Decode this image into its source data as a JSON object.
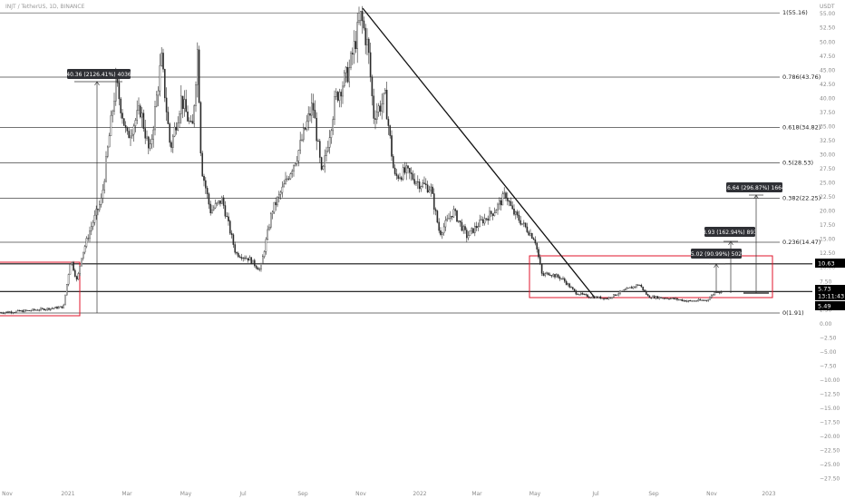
{
  "header": {
    "symbol": "INJT / TetherUS, 1D, BINANCE",
    "currency": "USDT"
  },
  "colors": {
    "candle": "#2b2b2b",
    "fib_line": "#444444",
    "zone_border": "#e0162b",
    "box_bg": "#2f3035",
    "price_tag_bg": "#000000"
  },
  "chart_data": {
    "type": "candlestick",
    "title": "INJT / TetherUS, 1D, BINANCE",
    "yunit": "USDT",
    "x_ticks": [
      "Nov",
      "2021",
      "Mar",
      "May",
      "Jul",
      "Sep",
      "Nov",
      "2022",
      "Mar",
      "May",
      "Jul",
      "Sep",
      "Nov",
      "2023"
    ],
    "y_ticks": [
      "55.00",
      "52.50",
      "50.00",
      "47.50",
      "45.00",
      "42.50",
      "40.00",
      "37.50",
      "35.00",
      "32.50",
      "30.00",
      "27.50",
      "25.00",
      "22.50",
      "20.00",
      "17.50",
      "15.00",
      "12.50",
      "10.00",
      "7.50",
      "5.00",
      "2.50",
      "0.00",
      "−2.50",
      "−5.00",
      "−7.50",
      "−10.00",
      "−12.50",
      "−15.00",
      "−17.50",
      "−20.00",
      "−22.50",
      "−25.00",
      "−27.50"
    ],
    "ylim": [
      -29.0,
      57.0
    ],
    "fib_levels": [
      {
        "label": "1(55.16)",
        "value": 55.16
      },
      {
        "label": "0.786(43.76)",
        "value": 43.76
      },
      {
        "label": "0.618(34.82)",
        "value": 34.82
      },
      {
        "label": "0.5(28.53)",
        "value": 28.53
      },
      {
        "label": "0.382(22.25)",
        "value": 22.25
      },
      {
        "label": "0.236(14.47)",
        "value": 14.47
      },
      {
        "label": "0(1.91)",
        "value": 1.91
      }
    ],
    "horizontal_levels": [
      10.63,
      5.73
    ],
    "price_tags": [
      {
        "label": "10.63",
        "value": 10.63
      },
      {
        "label": "5.73",
        "value": 5.73
      },
      {
        "label": "13:11:43",
        "value": 5.73
      },
      {
        "label": "5.49",
        "value": 5.49
      }
    ],
    "measure_boxes": [
      {
        "label": "40.36 (2126.41%) 4036"
      },
      {
        "label": "5.02 (90.99%) 502"
      },
      {
        "label": "8.93 (162.94%) 893"
      },
      {
        "label": "16.64 (296.87%) 1664"
      }
    ],
    "price_path": [
      [
        "Nov 2020",
        2.1
      ],
      [
        "Dec 2020",
        2.8
      ],
      [
        "late Dec 2020",
        3.2
      ],
      [
        "early Jan 2021",
        11.0
      ],
      [
        "mid Jan 2021",
        15.5
      ],
      [
        "late Jan 2021",
        22.0
      ],
      [
        "Feb 2021",
        38.0
      ],
      [
        "Mar 2021",
        34.0
      ],
      [
        "early Apr 2021",
        47.0
      ],
      [
        "mid Apr 2021",
        30.0
      ],
      [
        "late Apr 2021",
        48.0
      ],
      [
        "May 2021",
        22.0
      ],
      [
        "Jun 2021",
        14.0
      ],
      [
        "Jul 2021",
        9.5
      ],
      [
        "Aug 2021",
        24.0
      ],
      [
        "Sep 2021",
        36.0
      ],
      [
        "Oct 2021",
        44.0
      ],
      [
        "Nov 2021",
        55.2
      ],
      [
        "Dec 2021",
        28.0
      ],
      [
        "Jan 2022",
        24.0
      ],
      [
        "Feb 2022",
        17.0
      ],
      [
        "Mar 2022",
        19.0
      ],
      [
        "Apr 2022",
        22.0
      ],
      [
        "May 2022",
        8.0
      ],
      [
        "Jun 2022",
        3.5
      ],
      [
        "Jul 2022",
        4.5
      ],
      [
        "Aug 2022",
        6.3
      ],
      [
        "Sep 2022",
        4.5
      ],
      [
        "Oct 2022",
        4.0
      ],
      [
        "Nov 2022",
        5.5
      ]
    ]
  }
}
